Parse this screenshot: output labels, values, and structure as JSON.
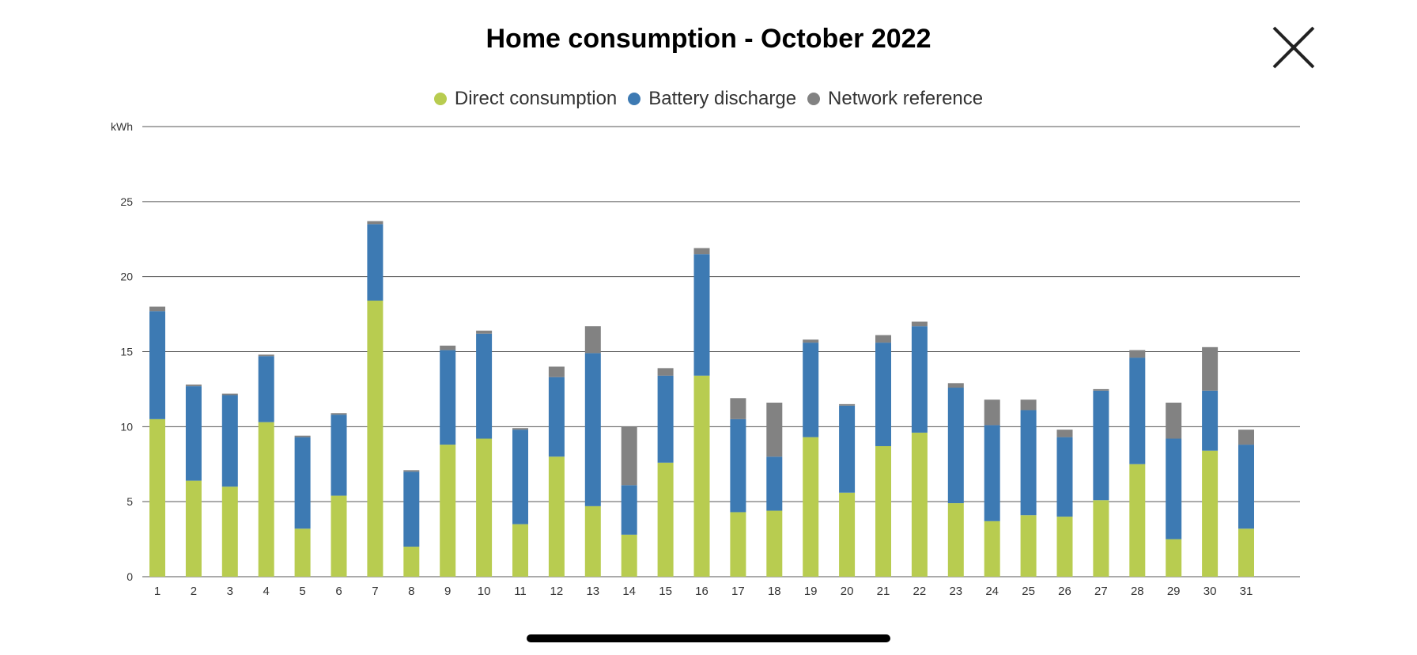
{
  "header": {
    "title": "Home consumption - October 2022",
    "close_icon": "close-icon"
  },
  "colors": {
    "direct": "#b8cc50",
    "battery": "#3d7ab3",
    "network": "#828282",
    "grid": "#555555",
    "text": "#333333"
  },
  "chart_data": {
    "type": "bar",
    "stacked": true,
    "title": "Home consumption - October 2022",
    "ylabel": "kWh",
    "xlabel": "",
    "ylim": [
      0,
      30
    ],
    "yticks": [
      0,
      5,
      10,
      15,
      20,
      25
    ],
    "grid": true,
    "legend_position": "top-center",
    "categories": [
      "1",
      "2",
      "3",
      "4",
      "5",
      "6",
      "7",
      "8",
      "9",
      "10",
      "11",
      "12",
      "13",
      "14",
      "15",
      "16",
      "17",
      "18",
      "19",
      "20",
      "21",
      "22",
      "23",
      "24",
      "25",
      "26",
      "27",
      "28",
      "29",
      "30",
      "31"
    ],
    "series": [
      {
        "name": "Direct consumption",
        "color": "#b8cc50",
        "values": [
          10.5,
          6.4,
          6.0,
          10.3,
          3.2,
          5.4,
          18.4,
          2.0,
          8.8,
          9.2,
          3.5,
          8.0,
          4.7,
          2.8,
          7.6,
          13.4,
          4.3,
          4.4,
          9.3,
          5.6,
          8.7,
          9.6,
          4.9,
          3.7,
          4.1,
          4.0,
          5.1,
          7.5,
          2.5,
          8.4,
          3.2
        ]
      },
      {
        "name": "Battery discharge",
        "color": "#3d7ab3",
        "values": [
          7.2,
          6.3,
          6.1,
          4.4,
          6.1,
          5.4,
          5.1,
          5.0,
          6.3,
          7.0,
          6.3,
          5.3,
          10.2,
          3.3,
          5.8,
          8.1,
          6.2,
          3.6,
          6.3,
          5.8,
          6.9,
          7.1,
          7.7,
          6.4,
          7.0,
          5.3,
          7.3,
          7.1,
          6.7,
          4.0,
          5.6
        ]
      },
      {
        "name": "Network reference",
        "color": "#828282",
        "values": [
          0.3,
          0.1,
          0.1,
          0.1,
          0.1,
          0.1,
          0.2,
          0.1,
          0.3,
          0.2,
          0.1,
          0.7,
          1.8,
          3.9,
          0.5,
          0.4,
          1.4,
          3.6,
          0.2,
          0.1,
          0.5,
          0.3,
          0.3,
          1.7,
          0.7,
          0.5,
          0.1,
          0.5,
          2.4,
          2.9,
          1.0
        ]
      }
    ]
  }
}
